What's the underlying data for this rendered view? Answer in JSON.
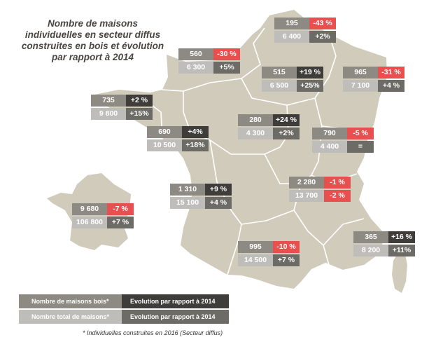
{
  "title": "Nombre de maisons individuelles en secteur diffus construites en bois et évolution par rapport à 2014",
  "colors": {
    "land": "#d1cbbb",
    "border": "#ffffff",
    "negative": "#ea4f4f"
  },
  "regions": [
    {
      "id": "hauts-de-france",
      "bois": "195",
      "bois_evol": "-43 %",
      "bois_neg": true,
      "total": "6 400",
      "total_evol": "+2%",
      "total_neg": false
    },
    {
      "id": "normandie",
      "bois": "560",
      "bois_evol": "-30 %",
      "bois_neg": true,
      "total": "6 300",
      "total_evol": "+5%",
      "total_neg": false
    },
    {
      "id": "ile-de-france",
      "bois": "515",
      "bois_evol": "+19 %",
      "bois_neg": false,
      "total": "6 500",
      "total_evol": "+25%",
      "total_neg": false
    },
    {
      "id": "grand-est",
      "bois": "965",
      "bois_evol": "-31 %",
      "bois_neg": true,
      "total": "7 100",
      "total_evol": "+4 %",
      "total_neg": false
    },
    {
      "id": "bretagne",
      "bois": "735",
      "bois_evol": "+2 %",
      "bois_neg": false,
      "total": "9 800",
      "total_evol": "+15%",
      "total_neg": false
    },
    {
      "id": "centre-val-de-loire",
      "bois": "280",
      "bois_evol": "+24 %",
      "bois_neg": false,
      "total": "4 300",
      "total_evol": "+2%",
      "total_neg": false
    },
    {
      "id": "pays-de-la-loire",
      "bois": "690",
      "bois_evol": "+4%",
      "bois_neg": false,
      "total": "10 500",
      "total_evol": "+18%",
      "total_neg": false
    },
    {
      "id": "bourgogne-franche-comte",
      "bois": "790",
      "bois_evol": "-5 %",
      "bois_neg": true,
      "total": "4 400",
      "total_evol": "=",
      "total_neg": false
    },
    {
      "id": "auvergne-rhone-alpes",
      "bois": "2 280",
      "bois_evol": "-1 %",
      "bois_neg": true,
      "total": "13 700",
      "total_evol": "-2 %",
      "total_neg": true
    },
    {
      "id": "nouvelle-aquitaine",
      "bois": "1 310",
      "bois_evol": "+9 %",
      "bois_neg": false,
      "total": "15 100",
      "total_evol": "+4 %",
      "total_neg": false
    },
    {
      "id": "france",
      "bois": "9 680",
      "bois_evol": "-7 %",
      "bois_neg": true,
      "total": "106 800",
      "total_evol": "+7 %",
      "total_neg": false
    },
    {
      "id": "occitanie",
      "bois": "995",
      "bois_evol": "-10 %",
      "bois_neg": true,
      "total": "14 500",
      "total_evol": "+7 %",
      "total_neg": false
    },
    {
      "id": "paca",
      "bois": "365",
      "bois_evol": "+16 %",
      "bois_neg": false,
      "total": "8 200",
      "total_evol": "+11%",
      "total_neg": false
    }
  ],
  "legend": {
    "bois_label": "Nombre de maisons bois*",
    "total_label": "Nombre total de maisons*",
    "evol_label": "Evolution par rapport à 2014"
  },
  "footnote": "* Individuelles construites en 2016 (Secteur diffus)"
}
